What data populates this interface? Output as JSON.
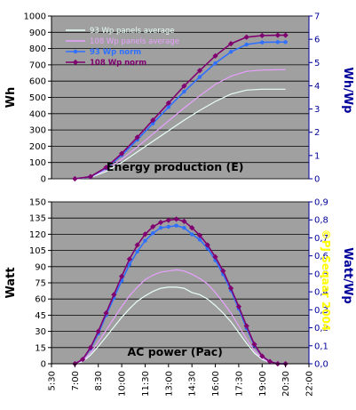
{
  "colors": {
    "plot_bg": "#a0a0a0",
    "gridline": "#000000",
    "left_axis_text": "#000000",
    "right_axis_text": "#00009a",
    "copyright": "#ffff00"
  },
  "icon": "none",
  "chart_data": [
    {
      "type": "line",
      "title": "Energy production (E)",
      "ylabel": "Wh",
      "y2label": "Wh/Wp",
      "ylim": [
        0,
        1000
      ],
      "y2lim": [
        0,
        7
      ],
      "yticks": [
        "0",
        "100",
        "200",
        "300",
        "400",
        "500",
        "600",
        "700",
        "800",
        "900",
        "1000"
      ],
      "y2ticks": [
        "0",
        "1",
        "2",
        "3",
        "4",
        "5",
        "6",
        "7"
      ],
      "x_start": 5.5,
      "x_end": 22.0,
      "grid": "horizontal",
      "legend_position": "top-left",
      "series": [
        {
          "name": "93 Wp panels average",
          "color": "#e8fff8",
          "marker": "none",
          "bold": false,
          "x": [
            7,
            8,
            9,
            10,
            11,
            12,
            13,
            14,
            15,
            16,
            17,
            18,
            19,
            20,
            20.5
          ],
          "values": [
            0,
            8,
            45,
            100,
            165,
            230,
            295,
            360,
            420,
            475,
            520,
            545,
            550,
            550,
            550
          ]
        },
        {
          "name": "108 Wp panels average",
          "color": "#e8a0ff",
          "marker": "none",
          "bold": false,
          "x": [
            7,
            8,
            9,
            10,
            11,
            12,
            13,
            14,
            15,
            16,
            17,
            18,
            19,
            20,
            20.5
          ],
          "values": [
            0,
            10,
            55,
            120,
            195,
            275,
            355,
            435,
            510,
            580,
            630,
            660,
            668,
            670,
            670
          ]
        },
        {
          "name": "93 Wp norm",
          "color": "#3070ff",
          "marker": "dot",
          "bold": true,
          "x": [
            7,
            8,
            9,
            10,
            11,
            12,
            13,
            14,
            15,
            16,
            17,
            18,
            19,
            20,
            20.5
          ],
          "values": [
            0,
            12,
            65,
            145,
            240,
            340,
            440,
            535,
            625,
            710,
            780,
            825,
            838,
            840,
            840
          ]
        },
        {
          "name": "108 Wp norm",
          "color": "#800070",
          "marker": "diamond",
          "bold": true,
          "x": [
            7,
            8,
            9,
            10,
            11,
            12,
            13,
            14,
            15,
            16,
            17,
            18,
            19,
            20,
            20.5
          ],
          "values": [
            0,
            13,
            70,
            155,
            255,
            360,
            465,
            570,
            665,
            755,
            830,
            870,
            880,
            882,
            882
          ]
        }
      ]
    },
    {
      "type": "line",
      "title": "AC power (Pac)",
      "ylabel": "Watt",
      "y2label": "Watt/Wp",
      "ylim": [
        0,
        150
      ],
      "y2lim": [
        0,
        0.9
      ],
      "yticks": [
        "0",
        "15",
        "30",
        "45",
        "60",
        "75",
        "90",
        "105",
        "120",
        "135",
        "150"
      ],
      "y2ticks": [
        "0,0",
        "0,1",
        "0,2",
        "0,3",
        "0,4",
        "0,5",
        "0,6",
        "0,7",
        "0,8",
        "0,9"
      ],
      "x_start": 5.5,
      "x_end": 22.0,
      "xticks": [
        "5:30",
        "7:00",
        "8:30",
        "10:00",
        "11:30",
        "13:00",
        "14:30",
        "16:00",
        "17:30",
        "19:00",
        "20:30",
        "22:00"
      ],
      "grid": "horizontal",
      "annotation": "©PJ Seqaar 2004",
      "series": [
        {
          "name": "93 Wp panels average",
          "color": "#e8fff8",
          "marker": "none",
          "x": [
            7,
            7.5,
            8,
            8.5,
            9,
            9.5,
            10,
            10.5,
            11,
            11.5,
            12,
            12.5,
            13,
            13.5,
            14,
            14.5,
            15,
            15.5,
            16,
            16.5,
            17,
            17.5,
            18,
            18.5,
            19,
            19.5,
            20,
            20.5
          ],
          "values": [
            0,
            2,
            8,
            16,
            25,
            34,
            43,
            51,
            58,
            63,
            67,
            70,
            71,
            71,
            70,
            66,
            64,
            60,
            54,
            47,
            39,
            29,
            19,
            10,
            4,
            1,
            0,
            0
          ]
        },
        {
          "name": "108 Wp panels average",
          "color": "#e8a0ff",
          "marker": "none",
          "x": [
            7,
            7.5,
            8,
            8.5,
            9,
            9.5,
            10,
            10.5,
            11,
            11.5,
            12,
            12.5,
            13,
            13.5,
            14,
            14.5,
            15,
            15.5,
            16,
            16.5,
            17,
            17.5,
            18,
            18.5,
            19,
            19.5,
            20,
            20.5
          ],
          "values": [
            0,
            3,
            10,
            20,
            31,
            42,
            53,
            63,
            71,
            78,
            82,
            85,
            86,
            87,
            86,
            83,
            79,
            74,
            66,
            57,
            47,
            35,
            23,
            12,
            5,
            1,
            0,
            0
          ]
        },
        {
          "name": "93 Wp norm",
          "color": "#3070ff",
          "marker": "dot",
          "x": [
            7,
            7.5,
            8,
            8.5,
            9,
            9.5,
            10,
            10.5,
            11,
            11.5,
            12,
            12.5,
            13,
            13.5,
            14,
            14.5,
            15,
            15.5,
            16,
            16.5,
            17,
            17.5,
            18,
            18.5,
            19,
            19.5,
            20,
            20.5
          ],
          "values": [
            0,
            4,
            14,
            28,
            45,
            61,
            77,
            92,
            104,
            114,
            121,
            126,
            127,
            128,
            126,
            120,
            115,
            107,
            96,
            83,
            68,
            51,
            33,
            17,
            7,
            2,
            0,
            0
          ]
        },
        {
          "name": "108 Wp norm",
          "color": "#800070",
          "marker": "diamond",
          "x": [
            7,
            7.5,
            8,
            8.5,
            9,
            9.5,
            10,
            10.5,
            11,
            11.5,
            12,
            12.5,
            13,
            13.5,
            14,
            14.5,
            15,
            15.5,
            16,
            16.5,
            17,
            17.5,
            18,
            18.5,
            19,
            19.5,
            20,
            20.5
          ],
          "values": [
            0,
            4,
            15,
            30,
            47,
            64,
            81,
            97,
            110,
            120,
            127,
            131,
            133,
            134,
            132,
            126,
            119,
            110,
            99,
            86,
            70,
            53,
            35,
            18,
            7,
            2,
            0,
            0
          ]
        }
      ]
    }
  ]
}
